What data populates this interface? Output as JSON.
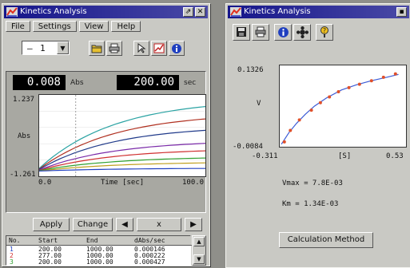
{
  "colors": {
    "titlebar": "#15158a",
    "window": "#c9c9c4",
    "desktop": "#8f8f8a",
    "fit_line": "#3b5bd6",
    "points": "#e0502a"
  },
  "left": {
    "title": "Kinetics Analysis",
    "title_buttons": [
      "⇗",
      "✕"
    ],
    "menu": [
      "File",
      "Settings",
      "View",
      "Help"
    ],
    "combo_value": "1",
    "icons": [
      "open-folder-icon",
      "print-icon",
      "cursor-icon",
      "graph-icon",
      "info-icon"
    ],
    "lcd1": {
      "value": "0.008",
      "unit": "Abs"
    },
    "lcd2": {
      "value": "200.00",
      "unit": "sec"
    },
    "y_top": "1.237",
    "y_label": "Abs",
    "y_bottom": "-1.261",
    "x_left": "0.0",
    "x_label": "Time [sec]",
    "x_right": "100.0",
    "buttons": [
      "Apply",
      "Change",
      "◀",
      "x",
      "▶"
    ],
    "table_headers": [
      "No.",
      "Start",
      "End",
      "dAbs/sec"
    ],
    "table_rows": [
      {
        "no": "1",
        "start": "200.00",
        "end": "1000.00",
        "rate": "0.000146"
      },
      {
        "no": "2",
        "start": "277.00",
        "end": "1000.00",
        "rate": "0.000222"
      },
      {
        "no": "3",
        "start": "200.00",
        "end": "1000.00",
        "rate": "0.000427"
      }
    ]
  },
  "right": {
    "title": "Kinetics Analysis",
    "icons": [
      "save-icon",
      "print-icon",
      "info-icon",
      "settings-icon",
      "help-icon"
    ],
    "y_top": "0.1326",
    "y_label": "V",
    "y_bottom": "-0.0084",
    "x_left": "-0.311",
    "x_label": "[S]",
    "x_right": "0.53",
    "vmax": "Vmax = 7.8E-03",
    "km": "Km = 1.34E-03",
    "calc_button": "Calculation Method"
  },
  "chart_data": [
    {
      "type": "line",
      "title": "",
      "xlabel": "Time [sec]",
      "ylabel": "Abs",
      "xlim": [
        0,
        100
      ],
      "ylim": [
        -1.261,
        1.237
      ],
      "series": [
        {
          "color": "#2aa3a3",
          "x": [
            0,
            100
          ],
          "y": [
            -1.02,
            0.88
          ]
        },
        {
          "color": "#b03020",
          "x": [
            0,
            100
          ],
          "y": [
            -1.04,
            0.5
          ]
        },
        {
          "color": "#203a8a",
          "x": [
            0,
            100
          ],
          "y": [
            -1.05,
            0.15
          ]
        },
        {
          "color": "#7a2aa8",
          "x": [
            0,
            100
          ],
          "y": [
            -1.07,
            -0.25
          ]
        },
        {
          "color": "#d03030",
          "x": [
            0,
            100
          ],
          "y": [
            -1.08,
            -0.48
          ]
        },
        {
          "color": "#30a030",
          "x": [
            0,
            100
          ],
          "y": [
            -1.09,
            -0.7
          ]
        },
        {
          "color": "#c0a020",
          "x": [
            0,
            100
          ],
          "y": [
            -1.1,
            -0.85
          ]
        },
        {
          "color": "#2040c0",
          "x": [
            0,
            100
          ],
          "y": [
            -1.1,
            -1.02
          ]
        }
      ]
    },
    {
      "type": "scatter",
      "title": "",
      "xlabel": "[S]",
      "ylabel": "V",
      "xlim": [
        -0.311,
        0.53
      ],
      "ylim": [
        -0.0084,
        0.1326
      ],
      "points": {
        "x": [
          -0.28,
          -0.24,
          -0.18,
          -0.1,
          -0.04,
          0.02,
          0.08,
          0.15,
          0.22,
          0.3,
          0.38,
          0.46
        ],
        "y": [
          0.0,
          0.02,
          0.038,
          0.055,
          0.068,
          0.078,
          0.087,
          0.094,
          0.1,
          0.106,
          0.112,
          0.118
        ]
      },
      "fit": {
        "x": [
          -0.3,
          -0.25,
          -0.2,
          -0.14,
          -0.08,
          0.0,
          0.1,
          0.2,
          0.3,
          0.4,
          0.48
        ],
        "y": [
          -0.004,
          0.016,
          0.032,
          0.048,
          0.062,
          0.076,
          0.09,
          0.099,
          0.106,
          0.112,
          0.117
        ]
      }
    }
  ]
}
